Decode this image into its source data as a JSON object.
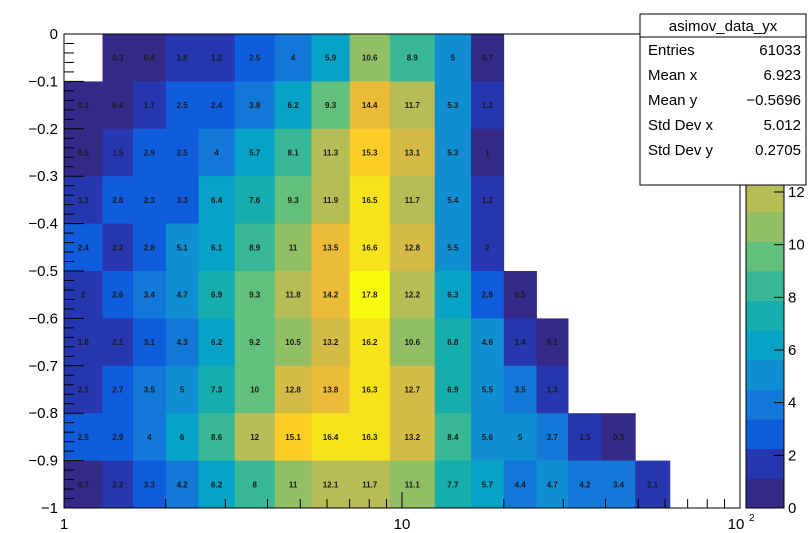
{
  "chart_data": {
    "type": "heatmap",
    "title": "",
    "x_scale": "log",
    "xlim": [
      1,
      100
    ],
    "ylim": [
      -1,
      0
    ],
    "x_edges": [
      1,
      1.3,
      1.6,
      2,
      2.5,
      3.2,
      4.2,
      5.4,
      7,
      9.2,
      12.5,
      16,
      20,
      25,
      31,
      39,
      49,
      62
    ],
    "y_edges": [
      -1,
      -0.9,
      -0.8,
      -0.7,
      -0.6,
      -0.5,
      -0.4,
      -0.3,
      -0.2,
      -0.1,
      0
    ],
    "rows": [
      {
        "y_low": -0.1,
        "values": [
          null,
          0.3,
          0.4,
          1.8,
          1.2,
          2.5,
          4,
          5.9,
          10.6,
          8.9,
          5,
          0.7
        ]
      },
      {
        "y_low": -0.2,
        "values": [
          0.2,
          0.4,
          1.7,
          2.5,
          2.4,
          3.9,
          6.2,
          9.3,
          14.4,
          11.7,
          5.3,
          1.2
        ]
      },
      {
        "y_low": -0.3,
        "values": [
          0.5,
          1.5,
          2.9,
          2.5,
          4,
          5.7,
          8.1,
          11.3,
          15.3,
          13.1,
          5.3,
          1
        ]
      },
      {
        "y_low": -0.4,
        "values": [
          1.3,
          2.8,
          2.3,
          3.3,
          6.4,
          7.6,
          9.3,
          11.9,
          16.5,
          11.7,
          5.4,
          1.2
        ]
      },
      {
        "y_low": -0.5,
        "values": [
          2.4,
          2.2,
          2.8,
          5.1,
          6.1,
          8.9,
          11,
          13.5,
          16.6,
          12.8,
          5.5,
          2
        ]
      },
      {
        "y_low": -0.6,
        "values": [
          2,
          2.6,
          3.4,
          4.7,
          6.9,
          9.3,
          11.8,
          14.2,
          17.8,
          12.2,
          6.3,
          2.8,
          0.5
        ]
      },
      {
        "y_low": -0.7,
        "values": [
          1.8,
          2.1,
          3.1,
          4.3,
          6.2,
          9.2,
          10.5,
          13.2,
          16.2,
          10.6,
          6.8,
          4.6,
          1.4,
          0.1
        ]
      },
      {
        "y_low": -0.8,
        "values": [
          2.1,
          2.7,
          3.5,
          5,
          7.3,
          10,
          12.8,
          13.8,
          16.3,
          12.7,
          6.9,
          5.5,
          3.5,
          1.3
        ]
      },
      {
        "y_low": -0.9,
        "values": [
          2.5,
          2.9,
          4,
          6,
          8.6,
          12,
          15.1,
          16.4,
          16.3,
          13.2,
          8.4,
          5.6,
          5,
          3.7,
          1.5,
          0.3
        ]
      },
      {
        "y_low": -1.0,
        "values": [
          0.7,
          2.2,
          3.3,
          4.2,
          6.2,
          8,
          11,
          12.1,
          11.7,
          11.1,
          7.7,
          5.7,
          4.4,
          4.7,
          4.2,
          3.4,
          2.1
        ]
      }
    ],
    "x_tick_labels": [
      "1",
      "10",
      "10"
    ],
    "x_tick_label_exponent": "2",
    "y_tick_labels": [
      "0",
      "−0.1",
      "−0.2",
      "−0.3",
      "−0.4",
      "−0.5",
      "−0.6",
      "−0.7",
      "−0.8",
      "−0.9",
      "−1"
    ],
    "colorbar": {
      "min": 0,
      "max": 18,
      "tick_labels": [
        "0",
        "2",
        "4",
        "6",
        "8",
        "10",
        "12"
      ]
    }
  },
  "stats_box": {
    "title": "asimov_data_yx",
    "entries_label": "Entries",
    "entries_value": "61033",
    "mean_x_label": "Mean x",
    "mean_x_value": "6.923",
    "mean_y_label": "Mean y",
    "mean_y_value": "−0.5696",
    "std_x_label": "Std Dev x",
    "std_x_value": "5.012",
    "std_y_label": "Std Dev y",
    "std_y_value": "0.2705"
  },
  "colors": {
    "palette": [
      "#352a87",
      "#2737b0",
      "#0f5cdd",
      "#1478d8",
      "#0f8fd1",
      "#07a3c7",
      "#18adad",
      "#38b896",
      "#62bf7c",
      "#92bf66",
      "#b6bd57",
      "#d4ba47",
      "#ecbc39",
      "#fbcd26",
      "#f6e319",
      "#f9fb0e"
    ]
  }
}
